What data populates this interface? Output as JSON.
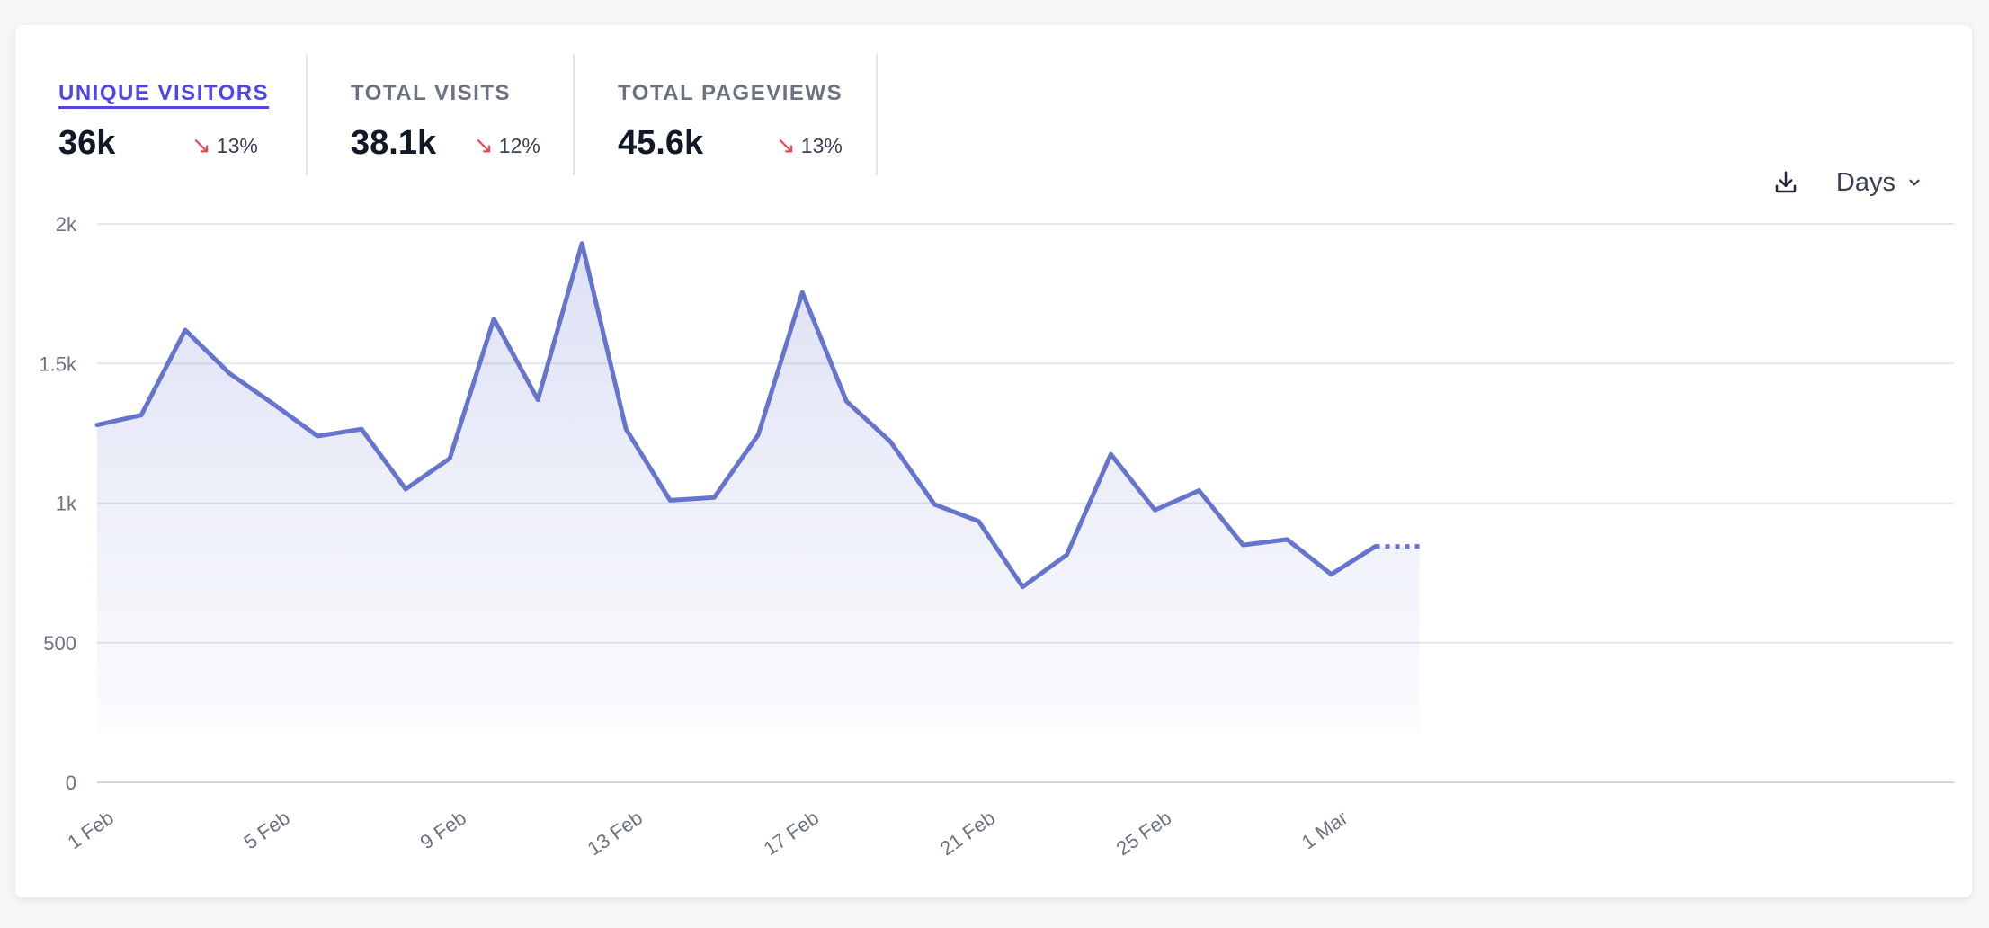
{
  "metrics": [
    {
      "label": "UNIQUE VISITORS",
      "value": "36k",
      "change": "13%",
      "direction": "down",
      "active": true
    },
    {
      "label": "TOTAL VISITS",
      "value": "38.1k",
      "change": "12%",
      "direction": "down",
      "active": false
    },
    {
      "label": "TOTAL PAGEVIEWS",
      "value": "45.6k",
      "change": "13%",
      "direction": "down",
      "active": false
    }
  ],
  "controls": {
    "download_icon": "download-icon",
    "interval_label": "Days"
  },
  "colors": {
    "line": "#6575cd",
    "accent": "#4f46e5",
    "negative": "#ef4444"
  },
  "chart_data": {
    "type": "area",
    "x": [
      "1 Feb",
      "2 Feb",
      "3 Feb",
      "4 Feb",
      "5 Feb",
      "6 Feb",
      "7 Feb",
      "8 Feb",
      "9 Feb",
      "10 Feb",
      "11 Feb",
      "12 Feb",
      "13 Feb",
      "14 Feb",
      "15 Feb",
      "16 Feb",
      "17 Feb",
      "18 Feb",
      "19 Feb",
      "20 Feb",
      "21 Feb",
      "22 Feb",
      "23 Feb",
      "24 Feb",
      "25 Feb",
      "26 Feb",
      "27 Feb",
      "28 Feb",
      "1 Mar",
      "2 Mar",
      "3 Mar"
    ],
    "series": [
      {
        "values": [
          1280,
          1315,
          1620,
          1465,
          1355,
          1240,
          1265,
          1050,
          1160,
          1660,
          1370,
          1930,
          1265,
          1010,
          1020,
          1245,
          1755,
          1365,
          1220,
          995,
          935,
          700,
          815,
          1175,
          975,
          1045,
          850,
          870,
          745,
          845,
          845
        ],
        "projected_from_index": 29
      }
    ],
    "x_ticks": [
      "1 Feb",
      "5 Feb",
      "9 Feb",
      "13 Feb",
      "17 Feb",
      "21 Feb",
      "25 Feb",
      "1 Mar"
    ],
    "y_ticks": [
      0,
      500,
      1000,
      1500,
      2000
    ],
    "y_tick_labels": [
      "0",
      "500",
      "1k",
      "1.5k",
      "2k"
    ],
    "ylim": [
      0,
      2000
    ],
    "grid": true,
    "legend": "none"
  }
}
